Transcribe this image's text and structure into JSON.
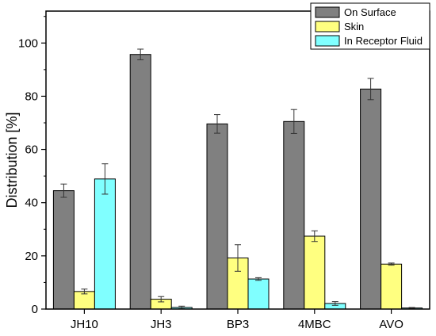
{
  "chart_data": {
    "type": "bar",
    "title": "",
    "xlabel": "",
    "ylabel": "Distribution [%]",
    "ylim": [
      0,
      112
    ],
    "yticks": [
      0,
      20,
      40,
      60,
      80,
      100
    ],
    "grid": false,
    "legend_position": "top-right",
    "categories": [
      "JH10",
      "JH3",
      "BP3",
      "4MBC",
      "AVO"
    ],
    "series": [
      {
        "name": "On Surface",
        "color": "#808080",
        "values": [
          44.5,
          95.7,
          69.6,
          70.5,
          82.7
        ],
        "errors": [
          2.5,
          2.0,
          3.5,
          4.5,
          4.0
        ]
      },
      {
        "name": "Skin",
        "color": "#ffff80",
        "values": [
          6.6,
          3.7,
          19.2,
          27.4,
          16.9
        ],
        "errors": [
          0.9,
          1.0,
          5.0,
          2.0,
          0.4
        ]
      },
      {
        "name": "In Receptor Fluid",
        "color": "#80ffff",
        "values": [
          48.9,
          0.6,
          11.3,
          2.1,
          0.4
        ],
        "errors": [
          5.7,
          0.5,
          0.5,
          0.7,
          0.2
        ]
      }
    ]
  }
}
